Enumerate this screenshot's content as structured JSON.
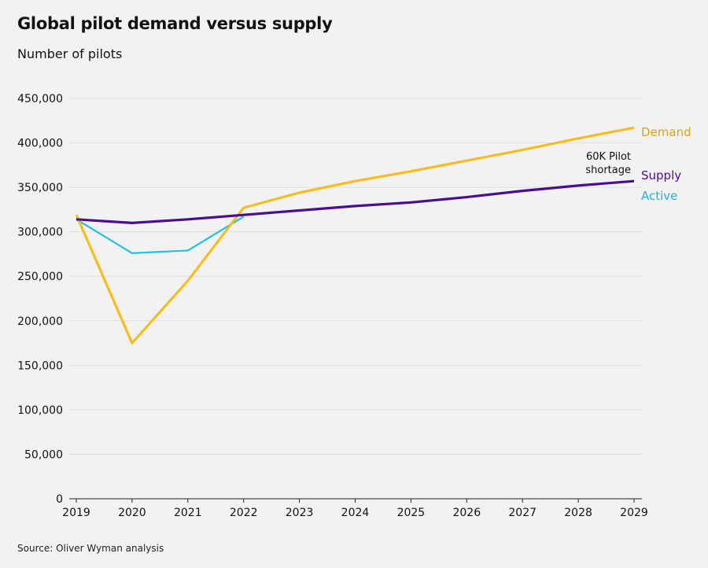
{
  "chart_data": {
    "type": "line",
    "title": "Global pilot demand versus supply",
    "subtitle": "Number of pilots",
    "source": "Source: Oliver Wyman analysis",
    "x": [
      2019,
      2020,
      2021,
      2022,
      2023,
      2024,
      2025,
      2026,
      2027,
      2028,
      2029
    ],
    "ylim": [
      0,
      450000
    ],
    "yticks": [
      0,
      50000,
      100000,
      150000,
      200000,
      250000,
      300000,
      350000,
      400000,
      450000
    ],
    "ytick_labels": [
      "0",
      "50,000",
      "100,000",
      "150,000",
      "200,000",
      "250,000",
      "300,000",
      "350,000",
      "400,000",
      "450,000"
    ],
    "grid": true,
    "legend": "right, inline labels at line ends",
    "series": [
      {
        "name": "Demand",
        "color": "#f5bd1f",
        "label_color": "#d9a21c",
        "values": [
          319000,
          175000,
          245000,
          327000,
          344000,
          357000,
          368000,
          380000,
          392000,
          405000,
          417000
        ]
      },
      {
        "name": "Supply",
        "color": "#4a0e8f",
        "label_color": "#4a0e8f",
        "values": [
          314000,
          310000,
          314000,
          319000,
          324000,
          329000,
          333000,
          339000,
          346000,
          352000,
          357000
        ]
      },
      {
        "name": "Active",
        "color": "#1fc0e0",
        "label_color": "#1ab3d6",
        "values": [
          314000,
          276000,
          279000,
          317000,
          null,
          null,
          null,
          null,
          null,
          null,
          null
        ]
      }
    ],
    "annotation": [
      "60K Pilot",
      "shortage"
    ]
  }
}
